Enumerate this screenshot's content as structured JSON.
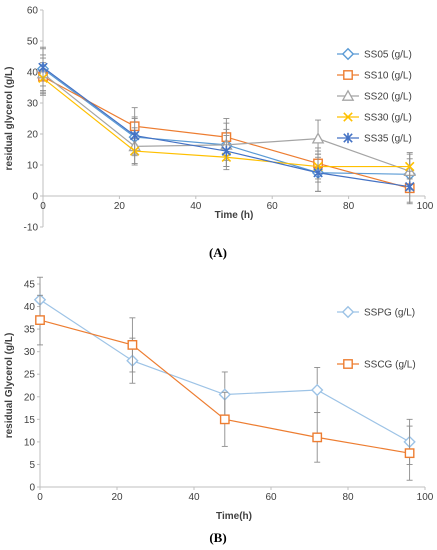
{
  "chart_data": [
    {
      "type": "line",
      "panel_label": "(A)",
      "xlabel": "Time (h)",
      "ylabel": "residual glycerol (g/L)",
      "xlim": [
        0,
        100
      ],
      "ylim": [
        -10,
        60
      ],
      "xticks": [
        0,
        20,
        40,
        60,
        80,
        100
      ],
      "yticks": [
        -10,
        0,
        10,
        20,
        30,
        40,
        50,
        60
      ],
      "grid": false,
      "legend_position": "right",
      "series": [
        {
          "name": "SS05 (g/L)",
          "color": "#5B9BD5",
          "marker": "diamond",
          "x": [
            0,
            24,
            48,
            72,
            96
          ],
          "y": [
            41.0,
            19.0,
            16.5,
            7.5,
            7.0
          ],
          "err": [
            7.0,
            6.0,
            7.0,
            6.0,
            5.0
          ]
        },
        {
          "name": "SS10 (g/L)",
          "color": "#ED7D31",
          "marker": "square",
          "x": [
            0,
            24,
            48,
            72,
            96
          ],
          "y": [
            38.5,
            22.5,
            19.0,
            10.5,
            2.5
          ],
          "err": [
            6.0,
            6.0,
            6.0,
            5.0,
            5.0
          ]
        },
        {
          "name": "SS20 (g/L)",
          "color": "#A5A5A5",
          "marker": "triangle",
          "x": [
            0,
            24,
            48,
            72,
            96
          ],
          "y": [
            39.5,
            16.0,
            16.5,
            18.5,
            8.0
          ],
          "err": [
            6.0,
            6.0,
            5.0,
            6.0,
            6.0
          ]
        },
        {
          "name": "SS30 (g/L)",
          "color": "#FFC000",
          "marker": "x",
          "x": [
            0,
            24,
            48,
            72,
            96
          ],
          "y": [
            38.0,
            14.5,
            12.5,
            9.5,
            9.5
          ],
          "err": [
            5.0,
            4.0,
            4.0,
            5.0,
            4.0
          ]
        },
        {
          "name": "SS35 (g/L)",
          "color": "#4472C4",
          "marker": "star",
          "x": [
            0,
            24,
            48,
            72,
            96
          ],
          "y": [
            41.5,
            19.5,
            14.5,
            7.5,
            3.0
          ],
          "err": [
            6.0,
            6.0,
            5.0,
            6.0,
            5.0
          ]
        }
      ]
    },
    {
      "type": "line",
      "panel_label": "(B)",
      "xlabel": "Time(h)",
      "ylabel": "residual Glycerol (g/L)",
      "xlim": [
        0,
        100
      ],
      "ylim": [
        0,
        45
      ],
      "xticks": [
        0,
        20,
        40,
        60,
        80,
        100
      ],
      "yticks": [
        0,
        5,
        10,
        15,
        20,
        25,
        30,
        35,
        40,
        45
      ],
      "grid": false,
      "legend_position": "right",
      "series": [
        {
          "name": "SSPG (g/L)",
          "color": "#9DC3E6",
          "marker": "diamond",
          "x": [
            0,
            24,
            48,
            72,
            96
          ],
          "y": [
            41.5,
            28.0,
            20.5,
            21.5,
            10.0
          ],
          "err": [
            5.0,
            5.0,
            5.0,
            5.0,
            5.0
          ]
        },
        {
          "name": "SSCG (g/L)",
          "color": "#ED7D31",
          "marker": "square",
          "x": [
            0,
            24,
            48,
            72,
            96
          ],
          "y": [
            37.0,
            31.5,
            15.0,
            11.0,
            7.5
          ],
          "err": [
            5.5,
            6.0,
            6.0,
            5.5,
            6.0
          ]
        }
      ]
    }
  ]
}
